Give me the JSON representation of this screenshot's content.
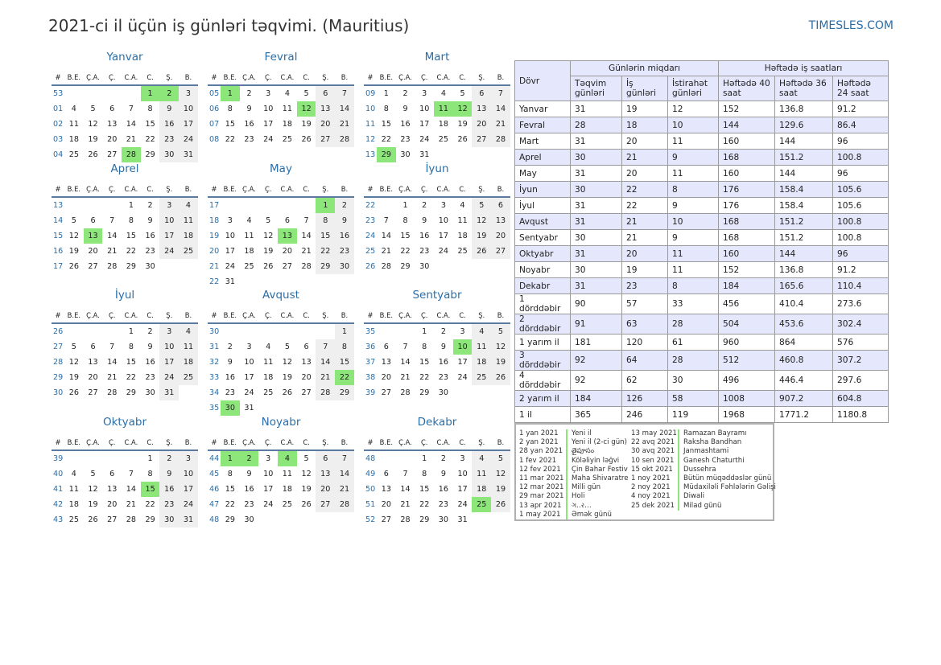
{
  "header": {
    "title": "2021-ci il üçün iş günləri təqvimi. (Mauritius)",
    "site": "TIMESLES.COM"
  },
  "weekday_headers": [
    "#",
    "B.E.",
    "Ç.A.",
    "Ç.",
    "C.A.",
    "C.",
    "Ş.",
    "B."
  ],
  "months": [
    {
      "name": "Yanvar",
      "weeks": [
        [
          "53",
          "",
          "",
          "",
          "",
          "1",
          "2",
          "3"
        ],
        [
          "01",
          "4",
          "5",
          "6",
          "7",
          "8",
          "9",
          "10"
        ],
        [
          "02",
          "11",
          "12",
          "13",
          "14",
          "15",
          "16",
          "17"
        ],
        [
          "03",
          "18",
          "19",
          "20",
          "21",
          "22",
          "23",
          "24"
        ],
        [
          "04",
          "25",
          "26",
          "27",
          "28",
          "29",
          "30",
          "31"
        ]
      ],
      "holidays": [
        "1",
        "2",
        "28"
      ]
    },
    {
      "name": "Fevral",
      "weeks": [
        [
          "05",
          "1",
          "2",
          "3",
          "4",
          "5",
          "6",
          "7"
        ],
        [
          "06",
          "8",
          "9",
          "10",
          "11",
          "12",
          "13",
          "14"
        ],
        [
          "07",
          "15",
          "16",
          "17",
          "18",
          "19",
          "20",
          "21"
        ],
        [
          "08",
          "22",
          "23",
          "24",
          "25",
          "26",
          "27",
          "28"
        ]
      ],
      "holidays": [
        "1",
        "12"
      ]
    },
    {
      "name": "Mart",
      "weeks": [
        [
          "09",
          "1",
          "2",
          "3",
          "4",
          "5",
          "6",
          "7"
        ],
        [
          "10",
          "8",
          "9",
          "10",
          "11",
          "12",
          "13",
          "14"
        ],
        [
          "11",
          "15",
          "16",
          "17",
          "18",
          "19",
          "20",
          "21"
        ],
        [
          "12",
          "22",
          "23",
          "24",
          "25",
          "26",
          "27",
          "28"
        ],
        [
          "13",
          "29",
          "30",
          "31",
          "",
          "",
          "",
          ""
        ]
      ],
      "holidays": [
        "11",
        "12",
        "29"
      ]
    },
    {
      "name": "Aprel",
      "weeks": [
        [
          "13",
          "",
          "",
          "",
          "1",
          "2",
          "3",
          "4"
        ],
        [
          "14",
          "5",
          "6",
          "7",
          "8",
          "9",
          "10",
          "11"
        ],
        [
          "15",
          "12",
          "13",
          "14",
          "15",
          "16",
          "17",
          "18"
        ],
        [
          "16",
          "19",
          "20",
          "21",
          "22",
          "23",
          "24",
          "25"
        ],
        [
          "17",
          "26",
          "27",
          "28",
          "29",
          "30",
          "",
          ""
        ]
      ],
      "holidays": [
        "13"
      ]
    },
    {
      "name": "May",
      "weeks": [
        [
          "17",
          "",
          "",
          "",
          "",
          "",
          "1",
          "2"
        ],
        [
          "18",
          "3",
          "4",
          "5",
          "6",
          "7",
          "8",
          "9"
        ],
        [
          "19",
          "10",
          "11",
          "12",
          "13",
          "14",
          "15",
          "16"
        ],
        [
          "20",
          "17",
          "18",
          "19",
          "20",
          "21",
          "22",
          "23"
        ],
        [
          "21",
          "24",
          "25",
          "26",
          "27",
          "28",
          "29",
          "30"
        ],
        [
          "22",
          "31",
          "",
          "",
          "",
          "",
          "",
          ""
        ]
      ],
      "holidays": [
        "1",
        "13"
      ]
    },
    {
      "name": "İyun",
      "weeks": [
        [
          "22",
          "",
          "1",
          "2",
          "3",
          "4",
          "5",
          "6"
        ],
        [
          "23",
          "7",
          "8",
          "9",
          "10",
          "11",
          "12",
          "13"
        ],
        [
          "24",
          "14",
          "15",
          "16",
          "17",
          "18",
          "19",
          "20"
        ],
        [
          "25",
          "21",
          "22",
          "23",
          "24",
          "25",
          "26",
          "27"
        ],
        [
          "26",
          "28",
          "29",
          "30",
          "",
          "",
          "",
          ""
        ]
      ],
      "holidays": []
    },
    {
      "name": "İyul",
      "weeks": [
        [
          "26",
          "",
          "",
          "",
          "1",
          "2",
          "3",
          "4"
        ],
        [
          "27",
          "5",
          "6",
          "7",
          "8",
          "9",
          "10",
          "11"
        ],
        [
          "28",
          "12",
          "13",
          "14",
          "15",
          "16",
          "17",
          "18"
        ],
        [
          "29",
          "19",
          "20",
          "21",
          "22",
          "23",
          "24",
          "25"
        ],
        [
          "30",
          "26",
          "27",
          "28",
          "29",
          "30",
          "31",
          ""
        ]
      ],
      "holidays": []
    },
    {
      "name": "Avqust",
      "weeks": [
        [
          "30",
          "",
          "",
          "",
          "",
          "",
          "",
          "1"
        ],
        [
          "31",
          "2",
          "3",
          "4",
          "5",
          "6",
          "7",
          "8"
        ],
        [
          "32",
          "9",
          "10",
          "11",
          "12",
          "13",
          "14",
          "15"
        ],
        [
          "33",
          "16",
          "17",
          "18",
          "19",
          "20",
          "21",
          "22"
        ],
        [
          "34",
          "23",
          "24",
          "25",
          "26",
          "27",
          "28",
          "29"
        ],
        [
          "35",
          "30",
          "31",
          "",
          "",
          "",
          "",
          ""
        ]
      ],
      "holidays": [
        "22",
        "30"
      ]
    },
    {
      "name": "Sentyabr",
      "weeks": [
        [
          "35",
          "",
          "",
          "1",
          "2",
          "3",
          "4",
          "5"
        ],
        [
          "36",
          "6",
          "7",
          "8",
          "9",
          "10",
          "11",
          "12"
        ],
        [
          "37",
          "13",
          "14",
          "15",
          "16",
          "17",
          "18",
          "19"
        ],
        [
          "38",
          "20",
          "21",
          "22",
          "23",
          "24",
          "25",
          "26"
        ],
        [
          "39",
          "27",
          "28",
          "29",
          "30",
          "",
          "",
          ""
        ]
      ],
      "holidays": [
        "10"
      ]
    },
    {
      "name": "Oktyabr",
      "weeks": [
        [
          "39",
          "",
          "",
          "",
          "",
          "1",
          "2",
          "3"
        ],
        [
          "40",
          "4",
          "5",
          "6",
          "7",
          "8",
          "9",
          "10"
        ],
        [
          "41",
          "11",
          "12",
          "13",
          "14",
          "15",
          "16",
          "17"
        ],
        [
          "42",
          "18",
          "19",
          "20",
          "21",
          "22",
          "23",
          "24"
        ],
        [
          "43",
          "25",
          "26",
          "27",
          "28",
          "29",
          "30",
          "31"
        ]
      ],
      "holidays": [
        "15"
      ]
    },
    {
      "name": "Noyabr",
      "weeks": [
        [
          "44",
          "1",
          "2",
          "3",
          "4",
          "5",
          "6",
          "7"
        ],
        [
          "45",
          "8",
          "9",
          "10",
          "11",
          "12",
          "13",
          "14"
        ],
        [
          "46",
          "15",
          "16",
          "17",
          "18",
          "19",
          "20",
          "21"
        ],
        [
          "47",
          "22",
          "23",
          "24",
          "25",
          "26",
          "27",
          "28"
        ],
        [
          "48",
          "29",
          "30",
          "",
          "",
          "",
          "",
          ""
        ]
      ],
      "holidays": [
        "1",
        "2",
        "4"
      ]
    },
    {
      "name": "Dekabr",
      "weeks": [
        [
          "48",
          "",
          "",
          "1",
          "2",
          "3",
          "4",
          "5"
        ],
        [
          "49",
          "6",
          "7",
          "8",
          "9",
          "10",
          "11",
          "12"
        ],
        [
          "50",
          "13",
          "14",
          "15",
          "16",
          "17",
          "18",
          "19"
        ],
        [
          "51",
          "20",
          "21",
          "22",
          "23",
          "24",
          "25",
          "26"
        ],
        [
          "52",
          "27",
          "28",
          "29",
          "30",
          "31",
          "",
          ""
        ]
      ],
      "holidays": [
        "25"
      ]
    }
  ],
  "stats": {
    "period_header": "Dövr",
    "group_days": "Günlərin miqdarı",
    "group_hours": "Həftədə iş saatları",
    "subheaders": [
      "Təqvim günləri",
      "İş günləri",
      "İstirahət günləri",
      "Həftədə 40 saat",
      "Həftədə 36 saat",
      "Həftədə 24 saat"
    ],
    "rows": [
      [
        "Yanvar",
        "31",
        "19",
        "12",
        "152",
        "136.8",
        "91.2"
      ],
      [
        "Fevral",
        "28",
        "18",
        "10",
        "144",
        "129.6",
        "86.4"
      ],
      [
        "Mart",
        "31",
        "20",
        "11",
        "160",
        "144",
        "96"
      ],
      [
        "Aprel",
        "30",
        "21",
        "9",
        "168",
        "151.2",
        "100.8"
      ],
      [
        "May",
        "31",
        "20",
        "11",
        "160",
        "144",
        "96"
      ],
      [
        "İyun",
        "30",
        "22",
        "8",
        "176",
        "158.4",
        "105.6"
      ],
      [
        "İyul",
        "31",
        "22",
        "9",
        "176",
        "158.4",
        "105.6"
      ],
      [
        "Avqust",
        "31",
        "21",
        "10",
        "168",
        "151.2",
        "100.8"
      ],
      [
        "Sentyabr",
        "30",
        "21",
        "9",
        "168",
        "151.2",
        "100.8"
      ],
      [
        "Oktyabr",
        "31",
        "20",
        "11",
        "160",
        "144",
        "96"
      ],
      [
        "Noyabr",
        "30",
        "19",
        "11",
        "152",
        "136.8",
        "91.2"
      ],
      [
        "Dekabr",
        "31",
        "23",
        "8",
        "184",
        "165.6",
        "110.4"
      ],
      [
        "1 dörddəbir",
        "90",
        "57",
        "33",
        "456",
        "410.4",
        "273.6"
      ],
      [
        "2 dörddəbir",
        "91",
        "63",
        "28",
        "504",
        "453.6",
        "302.4"
      ],
      [
        "1 yarım il",
        "181",
        "120",
        "61",
        "960",
        "864",
        "576"
      ],
      [
        "3 dörddəbir",
        "92",
        "64",
        "28",
        "512",
        "460.8",
        "307.2"
      ],
      [
        "4 dörddəbir",
        "92",
        "62",
        "30",
        "496",
        "446.4",
        "297.6"
      ],
      [
        "2 yarım il",
        "184",
        "126",
        "58",
        "1008",
        "907.2",
        "604.8"
      ],
      [
        "1 il",
        "365",
        "246",
        "119",
        "1968",
        "1771.2",
        "1180.8"
      ]
    ]
  },
  "holidays_list": {
    "left": [
      {
        "date": "1 yan 2021",
        "name": "Yeni il"
      },
      {
        "date": "2 yan 2021",
        "name": "Yeni il (2-ci gün)"
      },
      {
        "date": "28 yan 2021",
        "name": "తైపూసం"
      },
      {
        "date": "1 fev 2021",
        "name": "Köləliyin ləğvi"
      },
      {
        "date": "12 fev 2021",
        "name": "Çin Bahar Festivalı"
      },
      {
        "date": "11 mar 2021",
        "name": "Maha Shivaratree"
      },
      {
        "date": "12 mar 2021",
        "name": "Milli gün"
      },
      {
        "date": "29 mar 2021",
        "name": "Holi"
      },
      {
        "date": "13 apr 2021",
        "name": "ગ..ર…"
      },
      {
        "date": "1 may 2021",
        "name": "Əmək günü"
      }
    ],
    "right": [
      {
        "date": "13 may 2021",
        "name": "Ramazan Bayramı"
      },
      {
        "date": "22 avq 2021",
        "name": "Raksha Bandhan"
      },
      {
        "date": "30 avq 2021",
        "name": "Janmashtami"
      },
      {
        "date": "10 sen 2021",
        "name": "Ganesh Chaturthi"
      },
      {
        "date": "15 okt 2021",
        "name": "Dussehra"
      },
      {
        "date": "1 noy 2021",
        "name": "Bütün müqəddəslər günü"
      },
      {
        "date": "2 noy 2021",
        "name": "Müdaxiləli Fəhlələrin Gəlişi"
      },
      {
        "date": "4 noy 2021",
        "name": "Diwali"
      },
      {
        "date": "25 dek 2021",
        "name": "Milad günü"
      }
    ]
  }
}
